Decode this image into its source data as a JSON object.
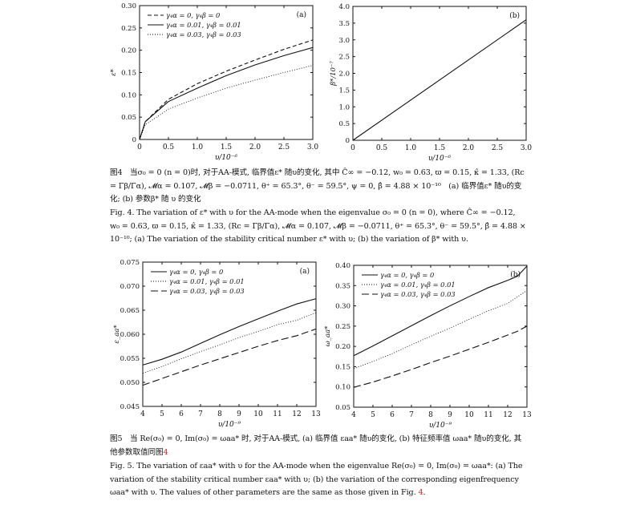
{
  "chart_data": [
    {
      "id": "fig4a",
      "type": "line",
      "panel_label": "(a)",
      "xlabel": "υ/10⁻⁶",
      "ylabel": "ε*",
      "xlim": [
        0,
        3.0
      ],
      "ylim": [
        0,
        0.3
      ],
      "xticks": [
        "0",
        "0.5",
        "1.0",
        "1.5",
        "2.0",
        "2.5",
        "3.0"
      ],
      "yticks": [
        "0",
        "0.05",
        "0.10",
        "0.15",
        "0.20",
        "0.25",
        "0.30"
      ],
      "legend": "top-left",
      "series": [
        {
          "name": "γ₄α = 0, γ₄β = 0",
          "style": "dashed",
          "x": [
            0,
            0.1,
            0.5,
            1.0,
            1.5,
            2.0,
            2.5,
            3.0
          ],
          "y": [
            0,
            0.04,
            0.09,
            0.125,
            0.153,
            0.178,
            0.202,
            0.223
          ]
        },
        {
          "name": "γ₄α = 0.01, γ₄β = 0.01",
          "style": "solid",
          "x": [
            0,
            0.1,
            0.5,
            1.0,
            1.5,
            2.0,
            2.5,
            3.0
          ],
          "y": [
            0,
            0.04,
            0.085,
            0.115,
            0.143,
            0.167,
            0.188,
            0.206
          ]
        },
        {
          "name": "γ₄α = 0.03, γ₄β = 0.03",
          "style": "dotted",
          "x": [
            0,
            0.1,
            0.5,
            1.0,
            1.5,
            2.0,
            2.5,
            3.0
          ],
          "y": [
            0,
            0.033,
            0.068,
            0.093,
            0.115,
            0.133,
            0.15,
            0.166
          ]
        }
      ]
    },
    {
      "id": "fig4b",
      "type": "line",
      "panel_label": "(b)",
      "xlabel": "υ/10⁻⁶",
      "ylabel": "β*/10⁻⁷",
      "xlim": [
        0,
        3.0
      ],
      "ylim": [
        0,
        4.0
      ],
      "xticks": [
        "0",
        "0.5",
        "1.0",
        "1.5",
        "2.0",
        "2.5",
        "3.0"
      ],
      "yticks": [
        "0",
        "0.5",
        "1.0",
        "1.5",
        "2.0",
        "2.5",
        "3.0",
        "3.5",
        "4.0"
      ],
      "series": [
        {
          "style": "solid",
          "x": [
            0,
            3.0
          ],
          "y": [
            0,
            3.6
          ]
        }
      ]
    },
    {
      "id": "fig5a",
      "type": "line",
      "panel_label": "(a)",
      "xlabel": "υ/10⁻⁹",
      "ylabel": "ε_aa*",
      "xlim": [
        4,
        13
      ],
      "ylim": [
        0.045,
        0.075
      ],
      "xticks": [
        "4",
        "5",
        "6",
        "7",
        "8",
        "9",
        "10",
        "11",
        "12",
        "13"
      ],
      "yticks": [
        "0.045",
        "0.050",
        "0.055",
        "0.060",
        "0.065",
        "0.070",
        "0.075"
      ],
      "legend": "top-left",
      "series": [
        {
          "name": "γ₄α = 0, γ₄β = 0",
          "style": "solid",
          "x": [
            4,
            5,
            6,
            7,
            8,
            9,
            10,
            11,
            12,
            13
          ],
          "y": [
            0.0536,
            0.0548,
            0.0563,
            0.0581,
            0.0599,
            0.0616,
            0.0632,
            0.0648,
            0.0663,
            0.0674
          ]
        },
        {
          "name": "γ₄α = 0.01, γ₄β = 0.01",
          "style": "dotted",
          "x": [
            4,
            5,
            6,
            7,
            8,
            9,
            10,
            11,
            12,
            13
          ],
          "y": [
            0.0519,
            0.0533,
            0.0549,
            0.0564,
            0.0578,
            0.0593,
            0.0606,
            0.062,
            0.0629,
            0.0645
          ]
        },
        {
          "name": "γ₄α = 0.03, γ₄β = 0.03",
          "style": "longdash",
          "x": [
            4,
            5,
            6,
            7,
            8,
            9,
            10,
            11,
            12,
            13
          ],
          "y": [
            0.0494,
            0.0508,
            0.0522,
            0.0536,
            0.0549,
            0.0562,
            0.0575,
            0.0587,
            0.0597,
            0.0611
          ]
        }
      ]
    },
    {
      "id": "fig5b",
      "type": "line",
      "panel_label": "(b)",
      "xlabel": "υ/10⁻⁹",
      "ylabel": "ω_aa*",
      "xlim": [
        4,
        13
      ],
      "ylim": [
        0.05,
        0.4
      ],
      "xticks": [
        "4",
        "5",
        "6",
        "7",
        "8",
        "9",
        "10",
        "11",
        "12",
        "13"
      ],
      "yticks": [
        "0.05",
        "0.10",
        "0.15",
        "0.20",
        "0.25",
        "0.30",
        "0.35",
        "0.40"
      ],
      "legend": "top-left",
      "series": [
        {
          "name": "γ₄α = 0, γ₄β = 0",
          "style": "solid",
          "x": [
            4,
            5,
            6,
            7,
            8,
            9,
            10,
            11,
            12,
            12.5,
            13
          ],
          "y": [
            0.177,
            0.201,
            0.226,
            0.251,
            0.276,
            0.3,
            0.323,
            0.345,
            0.363,
            0.373,
            0.398
          ]
        },
        {
          "name": "γ₄α = 0.01, γ₄β = 0.01",
          "style": "dotted",
          "x": [
            4,
            5,
            6,
            7,
            8,
            9,
            10,
            11,
            12,
            13
          ],
          "y": [
            0.145,
            0.163,
            0.182,
            0.204,
            0.225,
            0.245,
            0.267,
            0.288,
            0.306,
            0.338
          ]
        },
        {
          "name": "γ₄α = 0.03, γ₄β = 0.03",
          "style": "longdash",
          "x": [
            4,
            5,
            6,
            7,
            8,
            9,
            10,
            11,
            12,
            12.5,
            13
          ],
          "y": [
            0.099,
            0.112,
            0.127,
            0.143,
            0.16,
            0.176,
            0.193,
            0.21,
            0.228,
            0.237,
            0.25
          ]
        }
      ]
    }
  ],
  "captions": {
    "fig4_cn": "图4　当σ₀ = 0 (n = 0)时, 对于AA-模式, 临界值ε* 随υ的变化, 其中 Ĉ∞ = −0.12, w₀ = 0.63, ϖ = 0.15, κ̂ = 1.33, (Rc = Γ̄β/Γ̄α), 𝓜α = 0.107, 𝓜β = −0.0711, θ⁺ = 65.3°, θ⁻ = 59.5°, ψ = 0, β̂ = 4.88 × 10⁻¹⁰　(a) 临界值ε* 随υ的变化; (b) 参数β* 随 υ 的变化",
    "fig4_en": "Fig. 4. The variation of ε* with υ for the AA-mode when the eigenvalue σ₀ = 0 (n = 0), where Ĉ∞ = −0.12, w₀ = 0.63, ϖ = 0.15, κ̂ = 1.33, (Rc = Γ̄β/Γ̄α), 𝓜α = 0.107, 𝓜β = −0.0711, θ⁺ = 65.3°, θ⁻ = 59.5°, β̂ = 4.88 × 10⁻¹⁰; (a) The variation of the stability critical number ε* with υ; (b) the variation of β* with υ.",
    "fig5_cn": "图5　当 Re(σ₀) = 0, Im(σ₀) = ωaa* 时, 对于AA-模式, (a) 临界值 εaa* 随υ的变化, (b) 特征频率值 ωaa* 随υ的变化, 其他参数取值同图",
    "fig5_cn_ref": "4",
    "fig5_en": "Fig. 5. The variation of εaa* with υ for the AA-mode when the eigenvalue Re(σ₀) = 0, Im(σ₀) = ωaa*: (a) The variation of the stability critical number εaa* with υ; (b) the variation of the corresponding eigenfrequency ωaa* with υ. The values of other parameters are the same as those given in Fig.",
    "fig5_en_ref": "4",
    "fig5_en_end": "."
  }
}
